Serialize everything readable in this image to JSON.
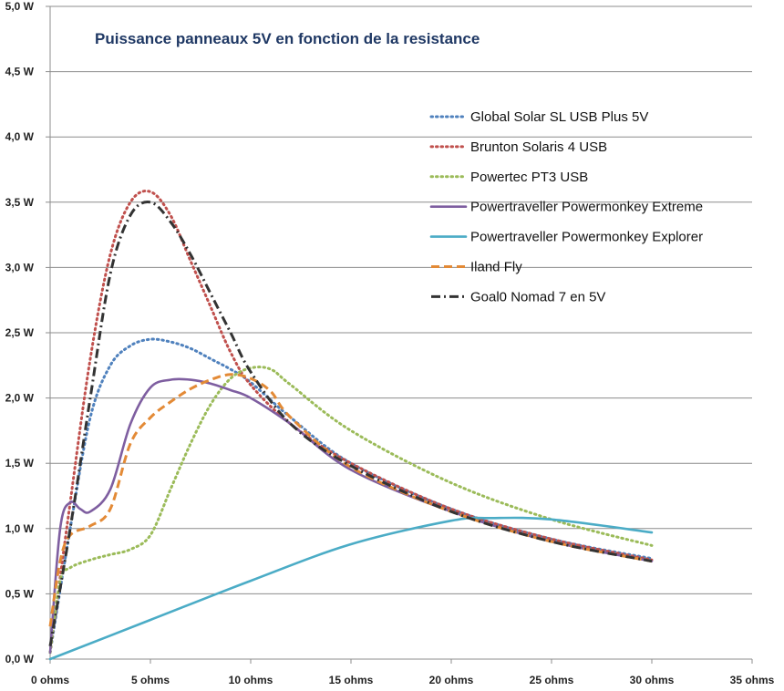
{
  "chart_data": {
    "type": "line",
    "title": "Puissance panneaux 5V en fonction de la resistance",
    "xlabel": "",
    "ylabel": "",
    "xlim": [
      0,
      35
    ],
    "ylim": [
      0,
      5
    ],
    "x_ticks": [
      0,
      5,
      10,
      15,
      20,
      25,
      30,
      35
    ],
    "x_tick_labels": [
      "0 ohms",
      "5 ohms",
      "10 ohms",
      "15 ohms",
      "20 ohms",
      "25 ohms",
      "30 ohms",
      "35 ohms"
    ],
    "y_ticks": [
      0,
      0.5,
      1,
      1.5,
      2,
      2.5,
      3,
      3.5,
      4,
      4.5,
      5
    ],
    "y_tick_labels": [
      "0,0 W",
      "0,5 W",
      "1,0 W",
      "1,5 W",
      "2,0 W",
      "2,5 W",
      "3,0 W",
      "3,5 W",
      "4,0 W",
      "4,5 W",
      "5,0 W"
    ],
    "grid": "horizontal",
    "legend_position": "right",
    "series": [
      {
        "name": "Global Solar SL USB Plus 5V",
        "color": "#4f81bd",
        "dash": "dotted",
        "x": [
          0,
          1,
          2,
          3,
          4,
          5,
          6,
          7,
          8,
          9,
          10,
          12,
          15,
          20,
          25,
          30
        ],
        "y": [
          0.05,
          1.0,
          1.85,
          2.25,
          2.4,
          2.45,
          2.43,
          2.38,
          2.3,
          2.22,
          2.12,
          1.85,
          1.5,
          1.15,
          0.92,
          0.77
        ]
      },
      {
        "name": "Brunton Solaris 4 USB",
        "color": "#c0504d",
        "dash": "dotted",
        "x": [
          0,
          1,
          2,
          3,
          4,
          5,
          6,
          7,
          8,
          9,
          10,
          12,
          15,
          20,
          25,
          30
        ],
        "y": [
          0.05,
          1.2,
          2.3,
          3.1,
          3.5,
          3.58,
          3.4,
          3.05,
          2.7,
          2.35,
          2.1,
          1.8,
          1.5,
          1.15,
          0.92,
          0.76
        ]
      },
      {
        "name": "Powertec PT3 USB",
        "color": "#9bbb59",
        "dash": "dotted",
        "x": [
          0,
          0.5,
          1,
          2,
          3,
          4,
          5,
          6,
          7,
          8,
          9,
          10,
          11,
          12,
          15,
          20,
          25,
          30
        ],
        "y": [
          0.05,
          0.6,
          0.7,
          0.76,
          0.8,
          0.84,
          0.95,
          1.3,
          1.65,
          1.95,
          2.15,
          2.23,
          2.22,
          2.1,
          1.75,
          1.35,
          1.07,
          0.87
        ]
      },
      {
        "name": "Powertraveller Powermonkey Extreme",
        "color": "#7e5ea0",
        "dash": "solid",
        "x": [
          0,
          0.5,
          1,
          1.5,
          2,
          3,
          4,
          5,
          6,
          7,
          8,
          9,
          10,
          12,
          15,
          20,
          25,
          30
        ],
        "y": [
          0.05,
          1.0,
          1.2,
          1.15,
          1.13,
          1.3,
          1.8,
          2.08,
          2.14,
          2.14,
          2.11,
          2.06,
          2.0,
          1.8,
          1.45,
          1.13,
          0.9,
          0.75
        ]
      },
      {
        "name": "Powertraveller Powermonkey Explorer",
        "color": "#4bacc6",
        "dash": "solid",
        "x": [
          0,
          5,
          10,
          15,
          20,
          22,
          25,
          30
        ],
        "y": [
          0,
          0.3,
          0.6,
          0.88,
          1.06,
          1.08,
          1.07,
          0.97
        ]
      },
      {
        "name": "Iland Fly",
        "color": "#e38a36",
        "dash": "dashed",
        "x": [
          0,
          0.5,
          1,
          2,
          3,
          4,
          5,
          6,
          7,
          8,
          9,
          10,
          11,
          12,
          15,
          20,
          25,
          30
        ],
        "y": [
          0.25,
          0.75,
          0.95,
          1.02,
          1.15,
          1.65,
          1.85,
          1.97,
          2.07,
          2.14,
          2.18,
          2.15,
          2.05,
          1.85,
          1.47,
          1.13,
          0.9,
          0.75
        ]
      },
      {
        "name": "Goal0 Nomad 7 en 5V",
        "color": "#333333",
        "dash": "dashdot",
        "x": [
          0,
          1,
          2,
          3,
          4,
          5,
          6,
          7,
          8,
          9,
          10,
          12,
          15,
          20,
          25,
          30
        ],
        "y": [
          0.1,
          1.0,
          2.0,
          2.95,
          3.4,
          3.5,
          3.35,
          3.1,
          2.8,
          2.5,
          2.2,
          1.8,
          1.48,
          1.13,
          0.9,
          0.75
        ]
      }
    ]
  }
}
